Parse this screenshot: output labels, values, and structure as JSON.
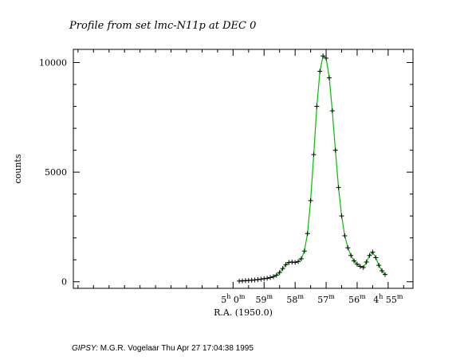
{
  "chart_data": {
    "type": "line",
    "title": "Profile from set lmc-N11p at DEC 0",
    "xlabel": "R.A. (1950.0)",
    "ylabel": "counts",
    "x_unit": "minutes of R.A. after 4h",
    "xlim": [
      65.15,
      54.2
    ],
    "ylim": [
      -300,
      10600
    ],
    "grid": false,
    "legend": "none",
    "y_ticks": [
      {
        "value": 0,
        "label": "0"
      },
      {
        "value": 5000,
        "label": "5000"
      },
      {
        "value": 10000,
        "label": "10000"
      }
    ],
    "x_major_ticks": [
      {
        "value": 60,
        "label": "5",
        "hour": "h",
        "minute_label": "0",
        "min_unit": "m"
      },
      {
        "value": 59,
        "label": "59",
        "min_unit": "m"
      },
      {
        "value": 58,
        "label": "58",
        "min_unit": "m"
      },
      {
        "value": 57,
        "label": "57",
        "min_unit": "m"
      },
      {
        "value": 56,
        "label": "56",
        "min_unit": "m"
      },
      {
        "value": 55,
        "label": "4",
        "hour": "h",
        "minute_label": "55",
        "min_unit": "m"
      }
    ],
    "series": [
      {
        "role": "data",
        "marker": "+",
        "color": "#000000",
        "x": [
          59.8,
          59.7,
          59.6,
          59.5,
          59.4,
          59.3,
          59.2,
          59.1,
          59.0,
          58.9,
          58.8,
          58.7,
          58.6,
          58.5,
          58.4,
          58.3,
          58.2,
          58.1,
          58.0,
          57.9,
          57.8,
          57.7,
          57.6,
          57.5,
          57.4,
          57.3,
          57.2,
          57.1,
          57.0,
          56.9,
          56.8,
          56.7,
          56.6,
          56.5,
          56.4,
          56.3,
          56.2,
          56.1,
          56.0,
          55.9,
          55.8,
          55.7,
          55.6,
          55.5,
          55.4,
          55.3,
          55.2,
          55.1
        ],
        "y": [
          30,
          40,
          50,
          60,
          70,
          80,
          100,
          120,
          140,
          160,
          190,
          230,
          300,
          420,
          600,
          780,
          880,
          900,
          880,
          920,
          1050,
          1400,
          2200,
          3700,
          5800,
          8000,
          9600,
          10300,
          10200,
          9300,
          7800,
          6000,
          4300,
          3000,
          2100,
          1550,
          1200,
          950,
          800,
          700,
          650,
          900,
          1200,
          1350,
          1100,
          750,
          500,
          330
        ]
      },
      {
        "role": "fit",
        "color": "#00c000",
        "x": [
          59.8,
          59.7,
          59.6,
          59.5,
          59.4,
          59.3,
          59.2,
          59.1,
          59.0,
          58.9,
          58.8,
          58.7,
          58.6,
          58.5,
          58.4,
          58.3,
          58.2,
          58.1,
          58.0,
          57.9,
          57.8,
          57.7,
          57.6,
          57.5,
          57.4,
          57.3,
          57.2,
          57.1,
          57.0,
          56.9,
          56.8,
          56.7,
          56.6,
          56.5,
          56.4,
          56.3,
          56.2,
          56.1,
          56.0,
          55.9,
          55.8,
          55.7,
          55.6,
          55.5,
          55.4,
          55.3,
          55.2,
          55.1
        ],
        "y": [
          30,
          40,
          50,
          60,
          70,
          80,
          100,
          120,
          140,
          160,
          190,
          230,
          300,
          420,
          600,
          780,
          880,
          900,
          880,
          920,
          1050,
          1400,
          2200,
          3700,
          5800,
          8000,
          9600,
          10300,
          10200,
          9300,
          7800,
          6000,
          4300,
          3000,
          2100,
          1550,
          1200,
          950,
          800,
          700,
          650,
          900,
          1200,
          1350,
          1100,
          750,
          500,
          330
        ]
      }
    ]
  },
  "footer": {
    "brand": "GIPSY:",
    "text": " M.G.R. Vogelaar Thu Apr 27 17:04:38 1995"
  }
}
